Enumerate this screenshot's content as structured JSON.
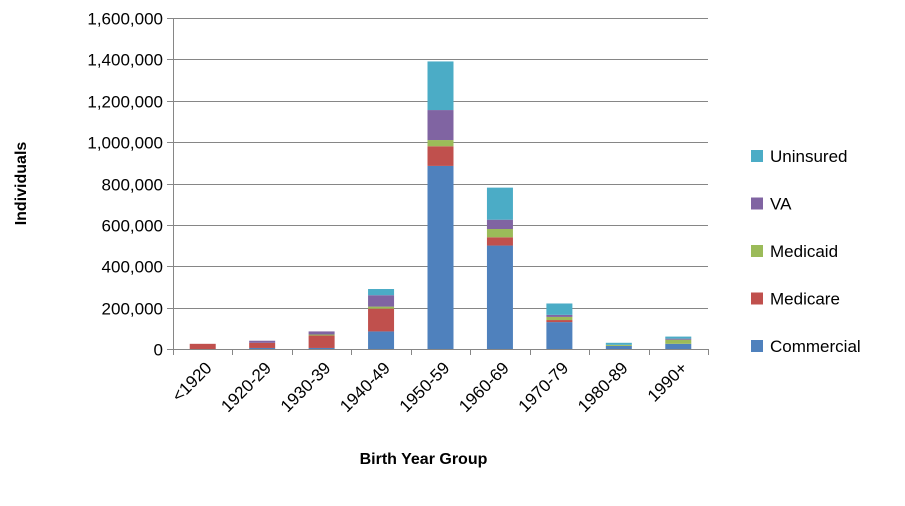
{
  "chart_data": {
    "type": "bar",
    "stacked": true,
    "title": "",
    "xlabel": "Birth Year Group",
    "ylabel": "Individuals",
    "ylim": [
      0,
      1600000
    ],
    "yticks": [
      0,
      200000,
      400000,
      600000,
      800000,
      1000000,
      1200000,
      1400000,
      1600000
    ],
    "ytick_labels": [
      "0",
      "200,000",
      "400,000",
      "600,000",
      "800,000",
      "1,000,000",
      "1,200,000",
      "1,400,000",
      "1,600,000"
    ],
    "grid": "horizontal",
    "legend_position": "right",
    "categories": [
      "<1920",
      "1920-29",
      "1930-39",
      "1940-49",
      "1950-59",
      "1960-69",
      "1970-79",
      "1980-89",
      "1990+"
    ],
    "series": [
      {
        "name": "Commercial",
        "color": "#4F81BD",
        "values": [
          0,
          5000,
          5000,
          85000,
          885000,
          500000,
          130000,
          15000,
          25000
        ]
      },
      {
        "name": "Medicare",
        "color": "#C0504D",
        "values": [
          25000,
          25000,
          60000,
          110000,
          95000,
          40000,
          10000,
          0,
          0
        ]
      },
      {
        "name": "Medicaid",
        "color": "#9BBB59",
        "values": [
          0,
          0,
          5000,
          10000,
          30000,
          40000,
          15000,
          5000,
          20000
        ]
      },
      {
        "name": "VA",
        "color": "#8064A2",
        "values": [
          0,
          10000,
          15000,
          55000,
          145000,
          45000,
          10000,
          0,
          5000
        ]
      },
      {
        "name": "Uninsured",
        "color": "#4BACC6",
        "values": [
          0,
          0,
          0,
          30000,
          235000,
          155000,
          55000,
          10000,
          10000
        ]
      }
    ]
  }
}
